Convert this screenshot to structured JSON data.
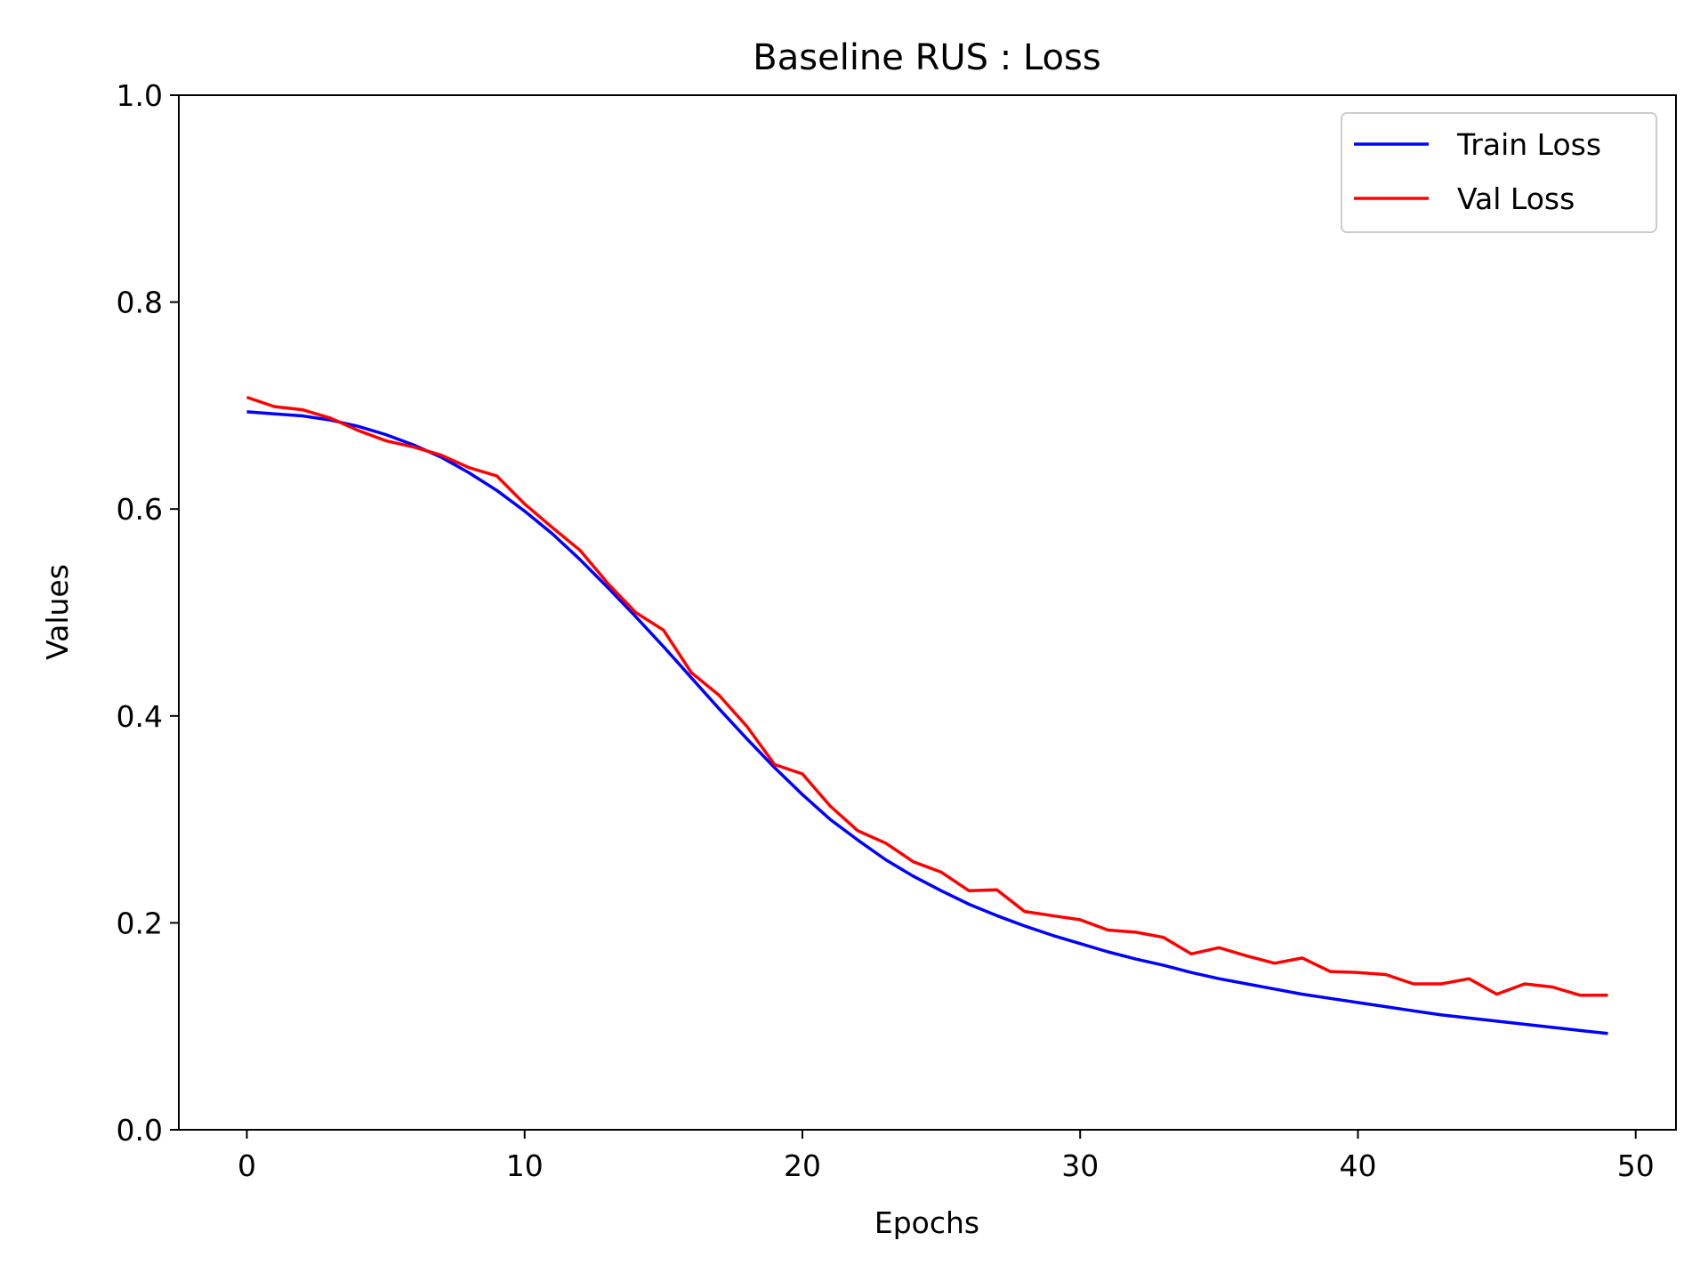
{
  "chart_data": {
    "type": "line",
    "title": "Baseline RUS : Loss",
    "xlabel": "Epochs",
    "ylabel": "Values",
    "xlim": [
      -2.45,
      51.45
    ],
    "ylim": [
      0.0,
      1.0
    ],
    "xticks": [
      0,
      10,
      20,
      30,
      40,
      50
    ],
    "yticks": [
      0.0,
      0.2,
      0.4,
      0.6,
      0.8,
      1.0
    ],
    "grid": false,
    "legend_position": "top-right",
    "x": [
      0,
      1,
      2,
      3,
      4,
      5,
      6,
      7,
      8,
      9,
      10,
      11,
      12,
      13,
      14,
      15,
      16,
      17,
      18,
      19,
      20,
      21,
      22,
      23,
      24,
      25,
      26,
      27,
      28,
      29,
      30,
      31,
      32,
      33,
      34,
      35,
      36,
      37,
      38,
      39,
      40,
      41,
      42,
      43,
      44,
      45,
      46,
      47,
      48,
      49
    ],
    "series": [
      {
        "name": "Train Loss",
        "color": "#0000ff",
        "values": [
          0.694,
          0.692,
          0.69,
          0.686,
          0.68,
          0.672,
          0.662,
          0.65,
          0.635,
          0.618,
          0.598,
          0.576,
          0.551,
          0.524,
          0.496,
          0.467,
          0.437,
          0.407,
          0.378,
          0.35,
          0.324,
          0.3,
          0.28,
          0.261,
          0.245,
          0.231,
          0.218,
          0.207,
          0.197,
          0.188,
          0.18,
          0.172,
          0.165,
          0.159,
          0.152,
          0.146,
          0.141,
          0.136,
          0.131,
          0.127,
          0.123,
          0.119,
          0.115,
          0.111,
          0.108,
          0.105,
          0.102,
          0.099,
          0.096,
          0.093
        ]
      },
      {
        "name": "Val Loss",
        "color": "#ff0000",
        "values": [
          0.708,
          0.699,
          0.696,
          0.688,
          0.676,
          0.666,
          0.66,
          0.652,
          0.64,
          0.632,
          0.605,
          0.582,
          0.56,
          0.528,
          0.5,
          0.483,
          0.442,
          0.42,
          0.39,
          0.353,
          0.344,
          0.313,
          0.289,
          0.277,
          0.259,
          0.249,
          0.231,
          0.232,
          0.211,
          0.207,
          0.203,
          0.193,
          0.191,
          0.186,
          0.17,
          0.176,
          0.168,
          0.161,
          0.166,
          0.153,
          0.152,
          0.15,
          0.141,
          0.141,
          0.146,
          0.131,
          0.141,
          0.138,
          0.13,
          0.13
        ]
      }
    ]
  }
}
